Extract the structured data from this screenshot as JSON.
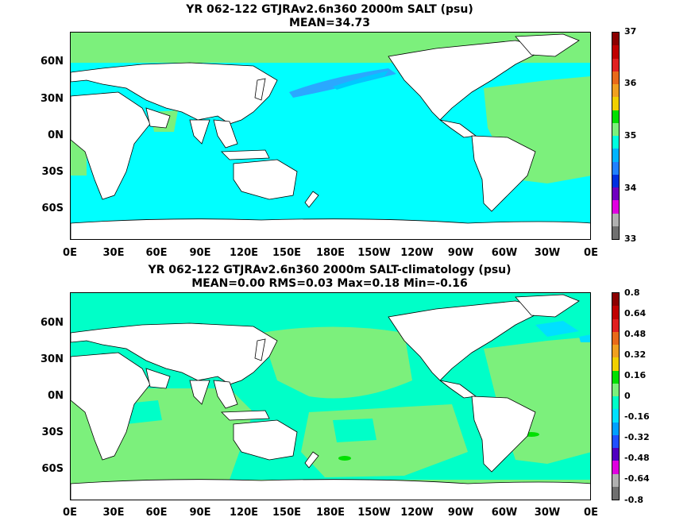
{
  "panels": {
    "top": {
      "title": "YR 062-122 GTJRAv2.6n360 2000m SALT (psu)",
      "subtitle": "MEAN=34.73"
    },
    "bottom": {
      "title": "YR 062-122 GTJRAv2.6n360 2000m SALT-climatology (psu)",
      "subtitle": "MEAN=0.00   RMS=0.03   Max=0.18   Min=-0.16"
    }
  },
  "axes": {
    "lat_labels": [
      "60N",
      "30N",
      "0N",
      "30S",
      "60S"
    ],
    "lon_labels": [
      "0E",
      "30E",
      "60E",
      "90E",
      "120E",
      "150E",
      "180E",
      "150W",
      "120W",
      "90W",
      "60W",
      "30W",
      "0E"
    ]
  },
  "colorbars": {
    "top": {
      "labels": [
        "37",
        "36",
        "35",
        "34",
        "33"
      ],
      "colors": [
        "#8b0000",
        "#c00000",
        "#e02020",
        "#e86a1a",
        "#f0a020",
        "#f0d000",
        "#00e000",
        "#7cf07c",
        "#00ffe0",
        "#00b4ff",
        "#2080ff",
        "#0030e0",
        "#7000c0",
        "#e000e0",
        "#b0b0b0",
        "#707070"
      ]
    },
    "bottom": {
      "labels": [
        "0.8",
        "0.64",
        "0.48",
        "0.32",
        "0.16",
        "0",
        "-0.16",
        "-0.32",
        "-0.48",
        "-0.64",
        "-0.8"
      ],
      "colors": [
        "#8b0000",
        "#c00000",
        "#e02020",
        "#e86a1a",
        "#f0a020",
        "#f0d000",
        "#00e000",
        "#7cf07c",
        "#00ffc8",
        "#00e0ff",
        "#00a0ff",
        "#2050ff",
        "#5000c0",
        "#e000e0",
        "#b0b0b0",
        "#707070"
      ]
    }
  }
}
